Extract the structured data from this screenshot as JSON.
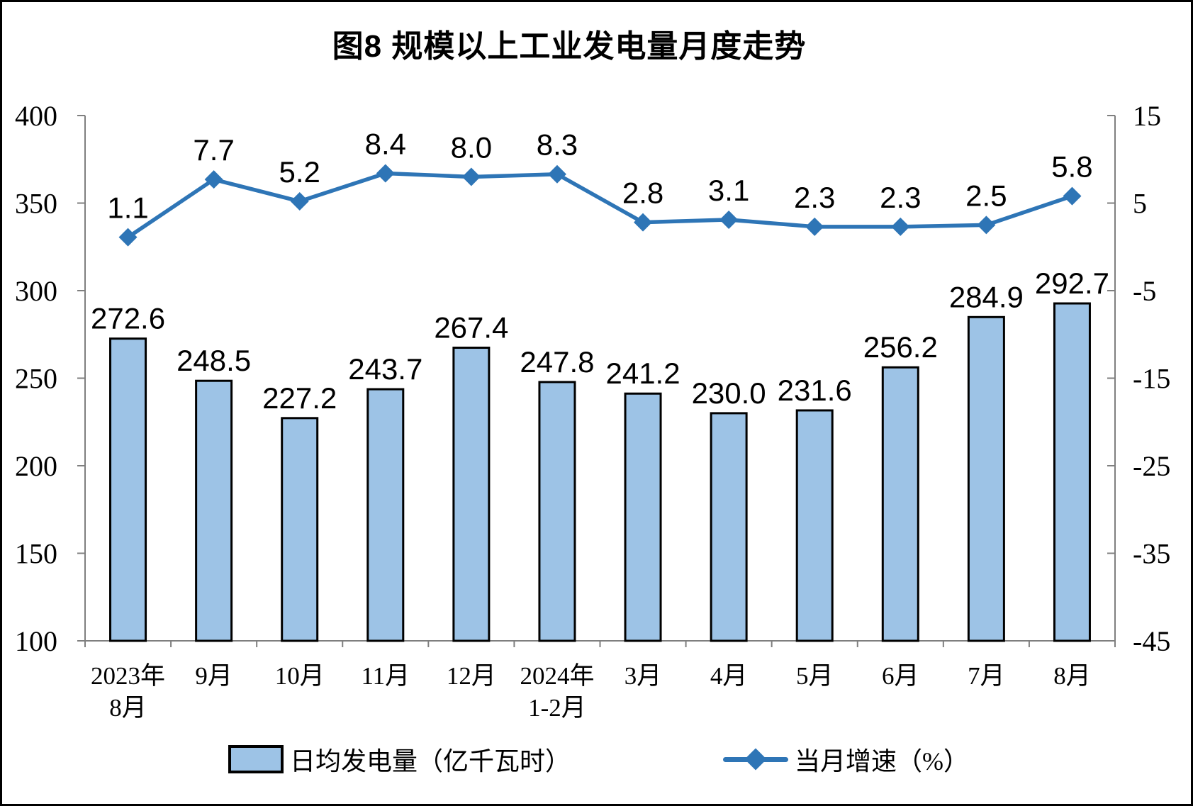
{
  "title": "图8 规模以上工业发电量月度走势",
  "chart_data": {
    "type": "bar+line",
    "title": "图8 规模以上工业发电量月度走势",
    "categories": [
      [
        "2023年",
        "8月"
      ],
      [
        "9月"
      ],
      [
        "10月"
      ],
      [
        "11月"
      ],
      [
        "12月"
      ],
      [
        "2024年",
        "1-2月"
      ],
      [
        "3月"
      ],
      [
        "4月"
      ],
      [
        "5月"
      ],
      [
        "6月"
      ],
      [
        "7月"
      ],
      [
        "8月"
      ]
    ],
    "series": [
      {
        "name": "日均发电量（亿千瓦时）",
        "type": "bar",
        "axis": "left",
        "values": [
          272.6,
          248.5,
          227.2,
          243.7,
          267.4,
          247.8,
          241.2,
          230.0,
          231.6,
          256.2,
          284.9,
          292.7
        ],
        "color": "#9DC3E6",
        "border_color": "#000000"
      },
      {
        "name": "当月增速（%）",
        "type": "line",
        "axis": "right",
        "values": [
          1.1,
          7.7,
          5.2,
          8.4,
          8.0,
          8.3,
          2.8,
          3.1,
          2.3,
          2.3,
          2.5,
          5.8
        ],
        "color": "#2E75B6",
        "marker": "diamond"
      }
    ],
    "left_axis": {
      "min": 100,
      "max": 400,
      "ticks": [
        400,
        350,
        300,
        250,
        200,
        150,
        100
      ]
    },
    "right_axis": {
      "min": -45,
      "max": 15,
      "ticks": [
        15,
        5,
        -5,
        -15,
        -25,
        -35,
        -45
      ]
    },
    "grid": false,
    "legend_position": "bottom",
    "axis_color": "#7F7F7F"
  },
  "legend": {
    "bar_label": "日均发电量（亿千瓦时）",
    "line_label": "当月增速（%）"
  }
}
